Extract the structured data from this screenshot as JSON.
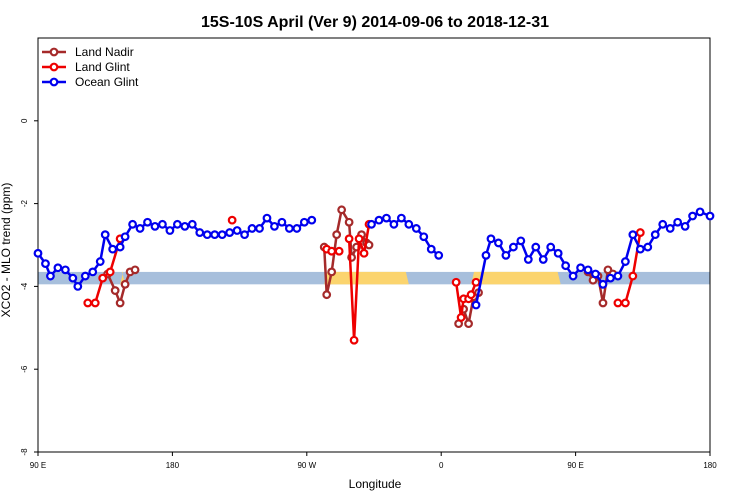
{
  "chart_data": {
    "type": "line",
    "title": "15S-10S April (Ver 9)   2014-09-06 to 2018-12-31",
    "xlabel": "Longitude",
    "ylabel": "XCO2 - MLO trend (ppm)",
    "xlim": [
      -90,
      180
    ],
    "ylim": [
      -8,
      2
    ],
    "x_ticks": [
      {
        "value": -90,
        "label": "90 E"
      },
      {
        "value": -36,
        "label": "180"
      },
      {
        "value": 18,
        "label": "90 W"
      },
      {
        "value": 72,
        "label": "0"
      },
      {
        "value": 126,
        "label": "90 E"
      },
      {
        "value": 180,
        "label": "180"
      }
    ],
    "y_ticks": [
      -8,
      -6,
      -4,
      -2,
      0
    ],
    "grid": false,
    "legend_position": "top-left",
    "reference_band": {
      "y_range": [
        -3.95,
        -3.65
      ],
      "color": "#a7bfdc",
      "highlight_color": "#fbd46e",
      "highlight_segments": [
        [
          -57,
          -55
        ],
        [
          25,
          59
        ],
        [
          84,
          120
        ]
      ]
    },
    "series": [
      {
        "name": "Land Nadir",
        "color": "#a52a2a",
        "segments": [
          [
            [
              -62,
              -3.7
            ],
            [
              -59,
              -4.1
            ],
            [
              -57,
              -4.4
            ],
            [
              -55,
              -3.95
            ],
            [
              -53,
              -3.65
            ],
            [
              -51,
              -3.6
            ]
          ],
          [
            [
              25,
              -3.05
            ],
            [
              26,
              -4.2
            ],
            [
              28,
              -3.65
            ],
            [
              30,
              -2.75
            ],
            [
              32,
              -2.15
            ],
            [
              35,
              -2.45
            ],
            [
              36,
              -3.3
            ],
            [
              38,
              -3.05
            ],
            [
              40,
              -2.75
            ],
            [
              42,
              -2.95
            ],
            [
              43,
              -3.0
            ]
          ],
          [
            [
              79,
              -4.9
            ],
            [
              81,
              -4.55
            ],
            [
              83,
              -4.9
            ],
            [
              85,
              -4.25
            ],
            [
              87,
              -4.15
            ]
          ],
          [
            [
              131,
              -3.65
            ],
            [
              133,
              -3.85
            ],
            [
              135,
              -3.75
            ],
            [
              137,
              -4.4
            ],
            [
              139,
              -3.6
            ],
            [
              141,
              -3.7
            ]
          ]
        ]
      },
      {
        "name": "Land Glint",
        "color": "#ee0000",
        "segments": [
          [
            [
              -70,
              -4.4
            ],
            [
              -67,
              -4.4
            ],
            [
              -64,
              -3.8
            ],
            [
              -61,
              -3.65
            ],
            [
              -57,
              -2.85
            ]
          ],
          [
            [
              -12,
              -2.4
            ]
          ],
          [
            [
              26,
              -3.1
            ],
            [
              28,
              -3.15
            ],
            [
              31,
              -3.15
            ]
          ],
          [
            [
              35,
              -2.85
            ],
            [
              37,
              -5.3
            ],
            [
              39,
              -2.85
            ],
            [
              41,
              -3.2
            ],
            [
              43,
              -2.5
            ]
          ],
          [
            [
              78,
              -3.9
            ],
            [
              80,
              -4.75
            ],
            [
              81,
              -4.3
            ],
            [
              83,
              -4.3
            ],
            [
              84,
              -4.2
            ],
            [
              86,
              -3.9
            ]
          ],
          [
            [
              143,
              -4.4
            ],
            [
              146,
              -4.4
            ],
            [
              149,
              -3.75
            ],
            [
              152,
              -2.7
            ]
          ]
        ]
      },
      {
        "name": "Ocean Glint",
        "color": "#0000ee",
        "segments": [
          [
            [
              -90,
              -3.2
            ],
            [
              -87,
              -3.45
            ],
            [
              -85,
              -3.75
            ],
            [
              -82,
              -3.55
            ],
            [
              -79,
              -3.6
            ],
            [
              -76,
              -3.8
            ],
            [
              -74,
              -4.0
            ],
            [
              -71,
              -3.75
            ],
            [
              -68,
              -3.65
            ],
            [
              -65,
              -3.4
            ],
            [
              -63,
              -2.75
            ],
            [
              -60,
              -3.1
            ],
            [
              -57,
              -3.05
            ],
            [
              -55,
              -2.8
            ],
            [
              -52,
              -2.5
            ],
            [
              -49,
              -2.6
            ],
            [
              -46,
              -2.45
            ],
            [
              -43,
              -2.55
            ],
            [
              -40,
              -2.5
            ],
            [
              -37,
              -2.65
            ],
            [
              -34,
              -2.5
            ],
            [
              -31,
              -2.55
            ],
            [
              -28,
              -2.5
            ],
            [
              -25,
              -2.7
            ],
            [
              -22,
              -2.75
            ],
            [
              -19,
              -2.75
            ],
            [
              -16,
              -2.75
            ],
            [
              -13,
              -2.7
            ],
            [
              -10,
              -2.65
            ],
            [
              -7,
              -2.75
            ],
            [
              -4,
              -2.6
            ],
            [
              -1,
              -2.6
            ],
            [
              2,
              -2.35
            ],
            [
              5,
              -2.55
            ],
            [
              8,
              -2.45
            ],
            [
              11,
              -2.6
            ],
            [
              14,
              -2.6
            ],
            [
              17,
              -2.45
            ],
            [
              20,
              -2.4
            ]
          ],
          [
            [
              44,
              -2.5
            ],
            [
              47,
              -2.4
            ],
            [
              50,
              -2.35
            ],
            [
              53,
              -2.5
            ],
            [
              56,
              -2.35
            ],
            [
              59,
              -2.5
            ],
            [
              62,
              -2.6
            ],
            [
              65,
              -2.8
            ],
            [
              68,
              -3.1
            ],
            [
              71,
              -3.25
            ]
          ],
          [
            [
              86,
              -4.45
            ],
            [
              90,
              -3.25
            ],
            [
              92,
              -2.85
            ],
            [
              95,
              -2.95
            ],
            [
              98,
              -3.25
            ],
            [
              101,
              -3.05
            ],
            [
              104,
              -2.9
            ],
            [
              107,
              -3.35
            ],
            [
              110,
              -3.05
            ],
            [
              113,
              -3.35
            ],
            [
              116,
              -3.05
            ],
            [
              119,
              -3.2
            ],
            [
              122,
              -3.5
            ],
            [
              125,
              -3.75
            ],
            [
              128,
              -3.55
            ],
            [
              131,
              -3.6
            ],
            [
              134,
              -3.7
            ],
            [
              137,
              -3.95
            ],
            [
              140,
              -3.8
            ],
            [
              143,
              -3.75
            ],
            [
              146,
              -3.4
            ],
            [
              149,
              -2.75
            ],
            [
              152,
              -3.1
            ],
            [
              155,
              -3.05
            ],
            [
              158,
              -2.75
            ],
            [
              161,
              -2.5
            ],
            [
              164,
              -2.6
            ],
            [
              167,
              -2.45
            ],
            [
              170,
              -2.55
            ],
            [
              173,
              -2.3
            ],
            [
              176,
              -2.2
            ],
            [
              180,
              -2.3
            ]
          ]
        ]
      }
    ]
  }
}
